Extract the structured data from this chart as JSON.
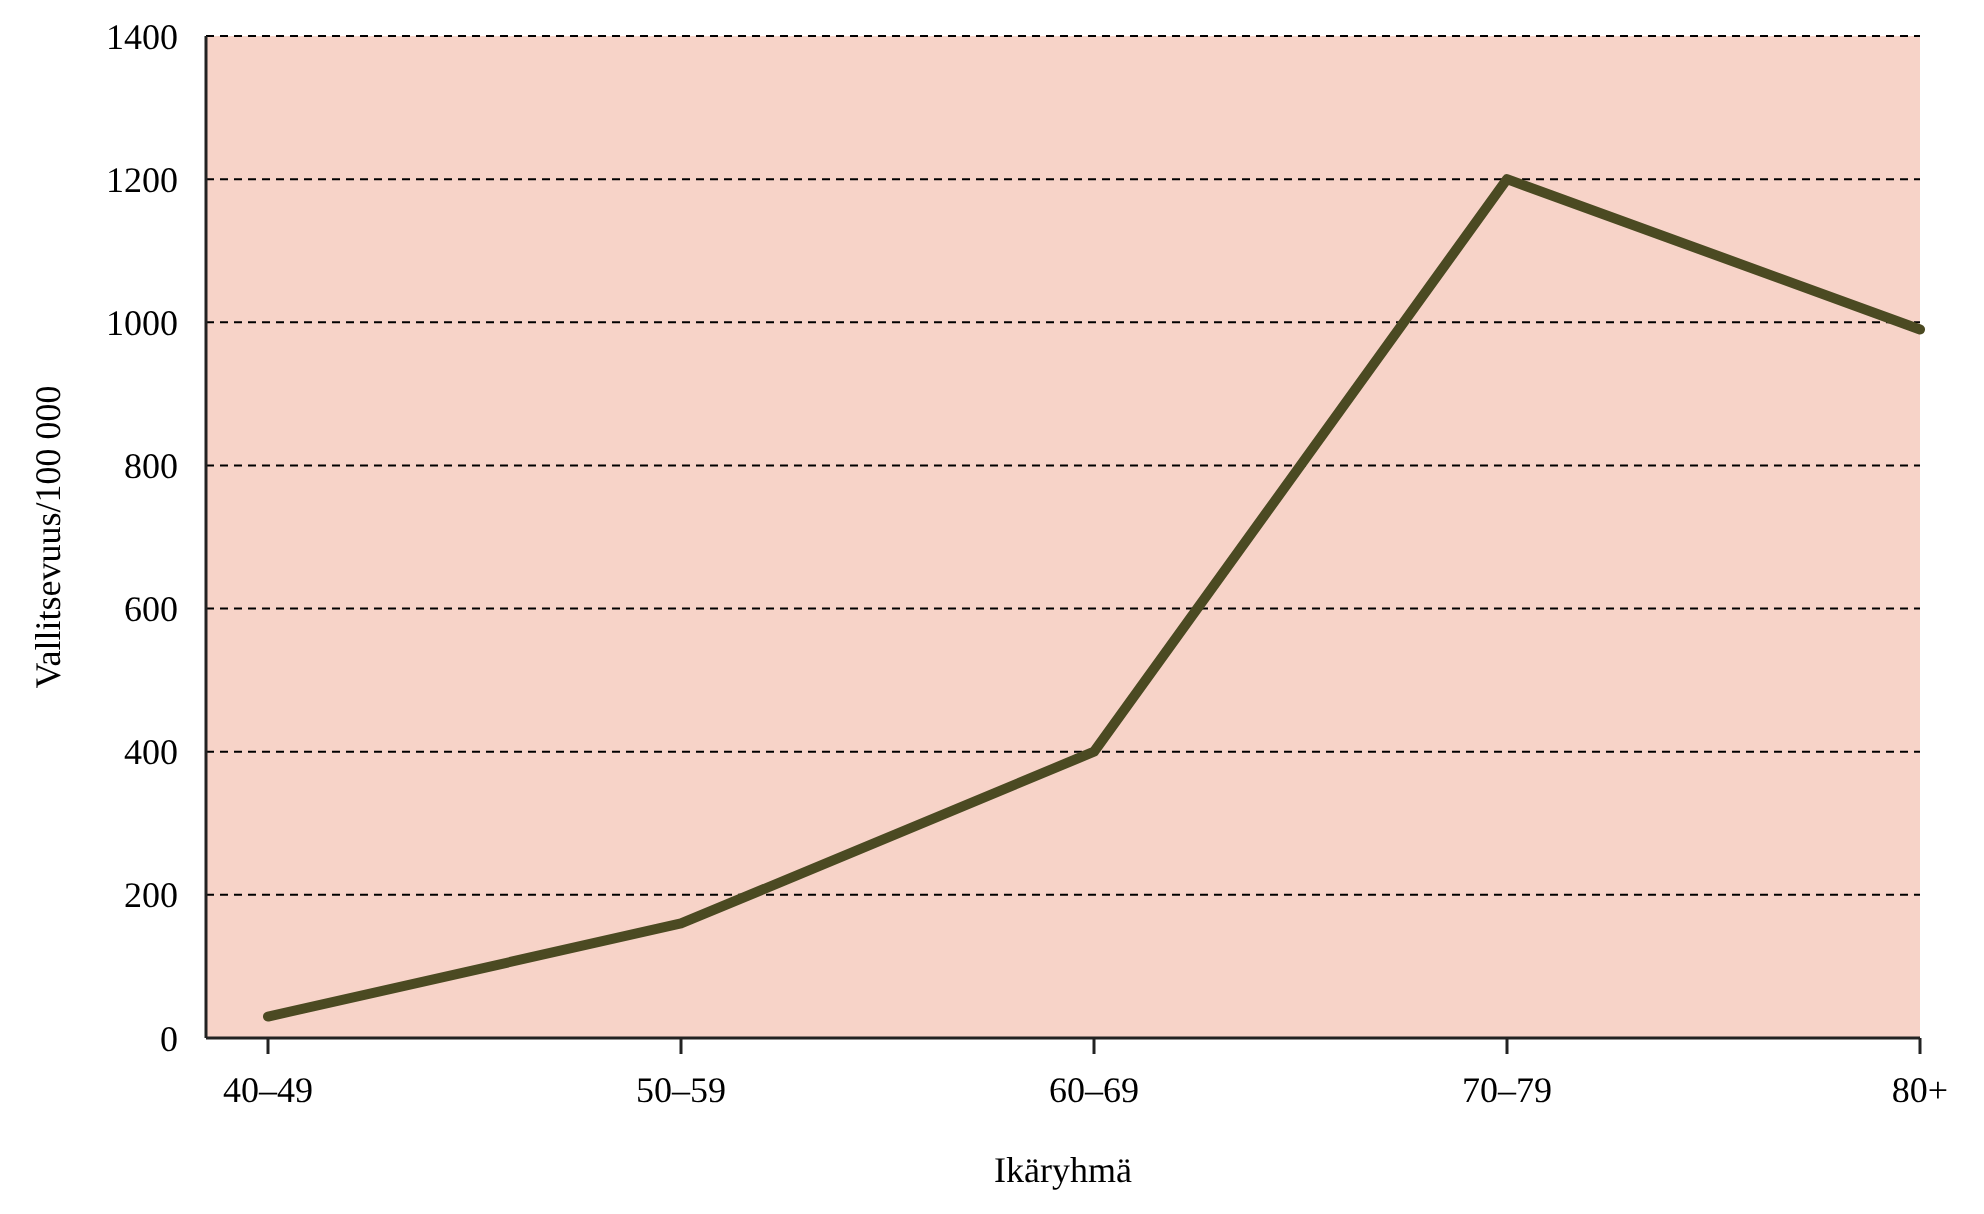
{
  "chart_data": {
    "type": "line",
    "xlabel": "Ikäryhmä",
    "ylabel": "Vallitsevuus/100 000",
    "categories": [
      "40–49",
      "50–59",
      "60–69",
      "70–79",
      "80+"
    ],
    "series": [
      {
        "color": "#4b4a22",
        "values": [
          30,
          160,
          400,
          1200,
          990
        ]
      }
    ],
    "ylim": [
      0,
      1400
    ],
    "yticks": [
      0,
      200,
      400,
      600,
      800,
      1000,
      1200,
      1400
    ],
    "grid": "y",
    "marker": "none",
    "line_style": "solid"
  }
}
